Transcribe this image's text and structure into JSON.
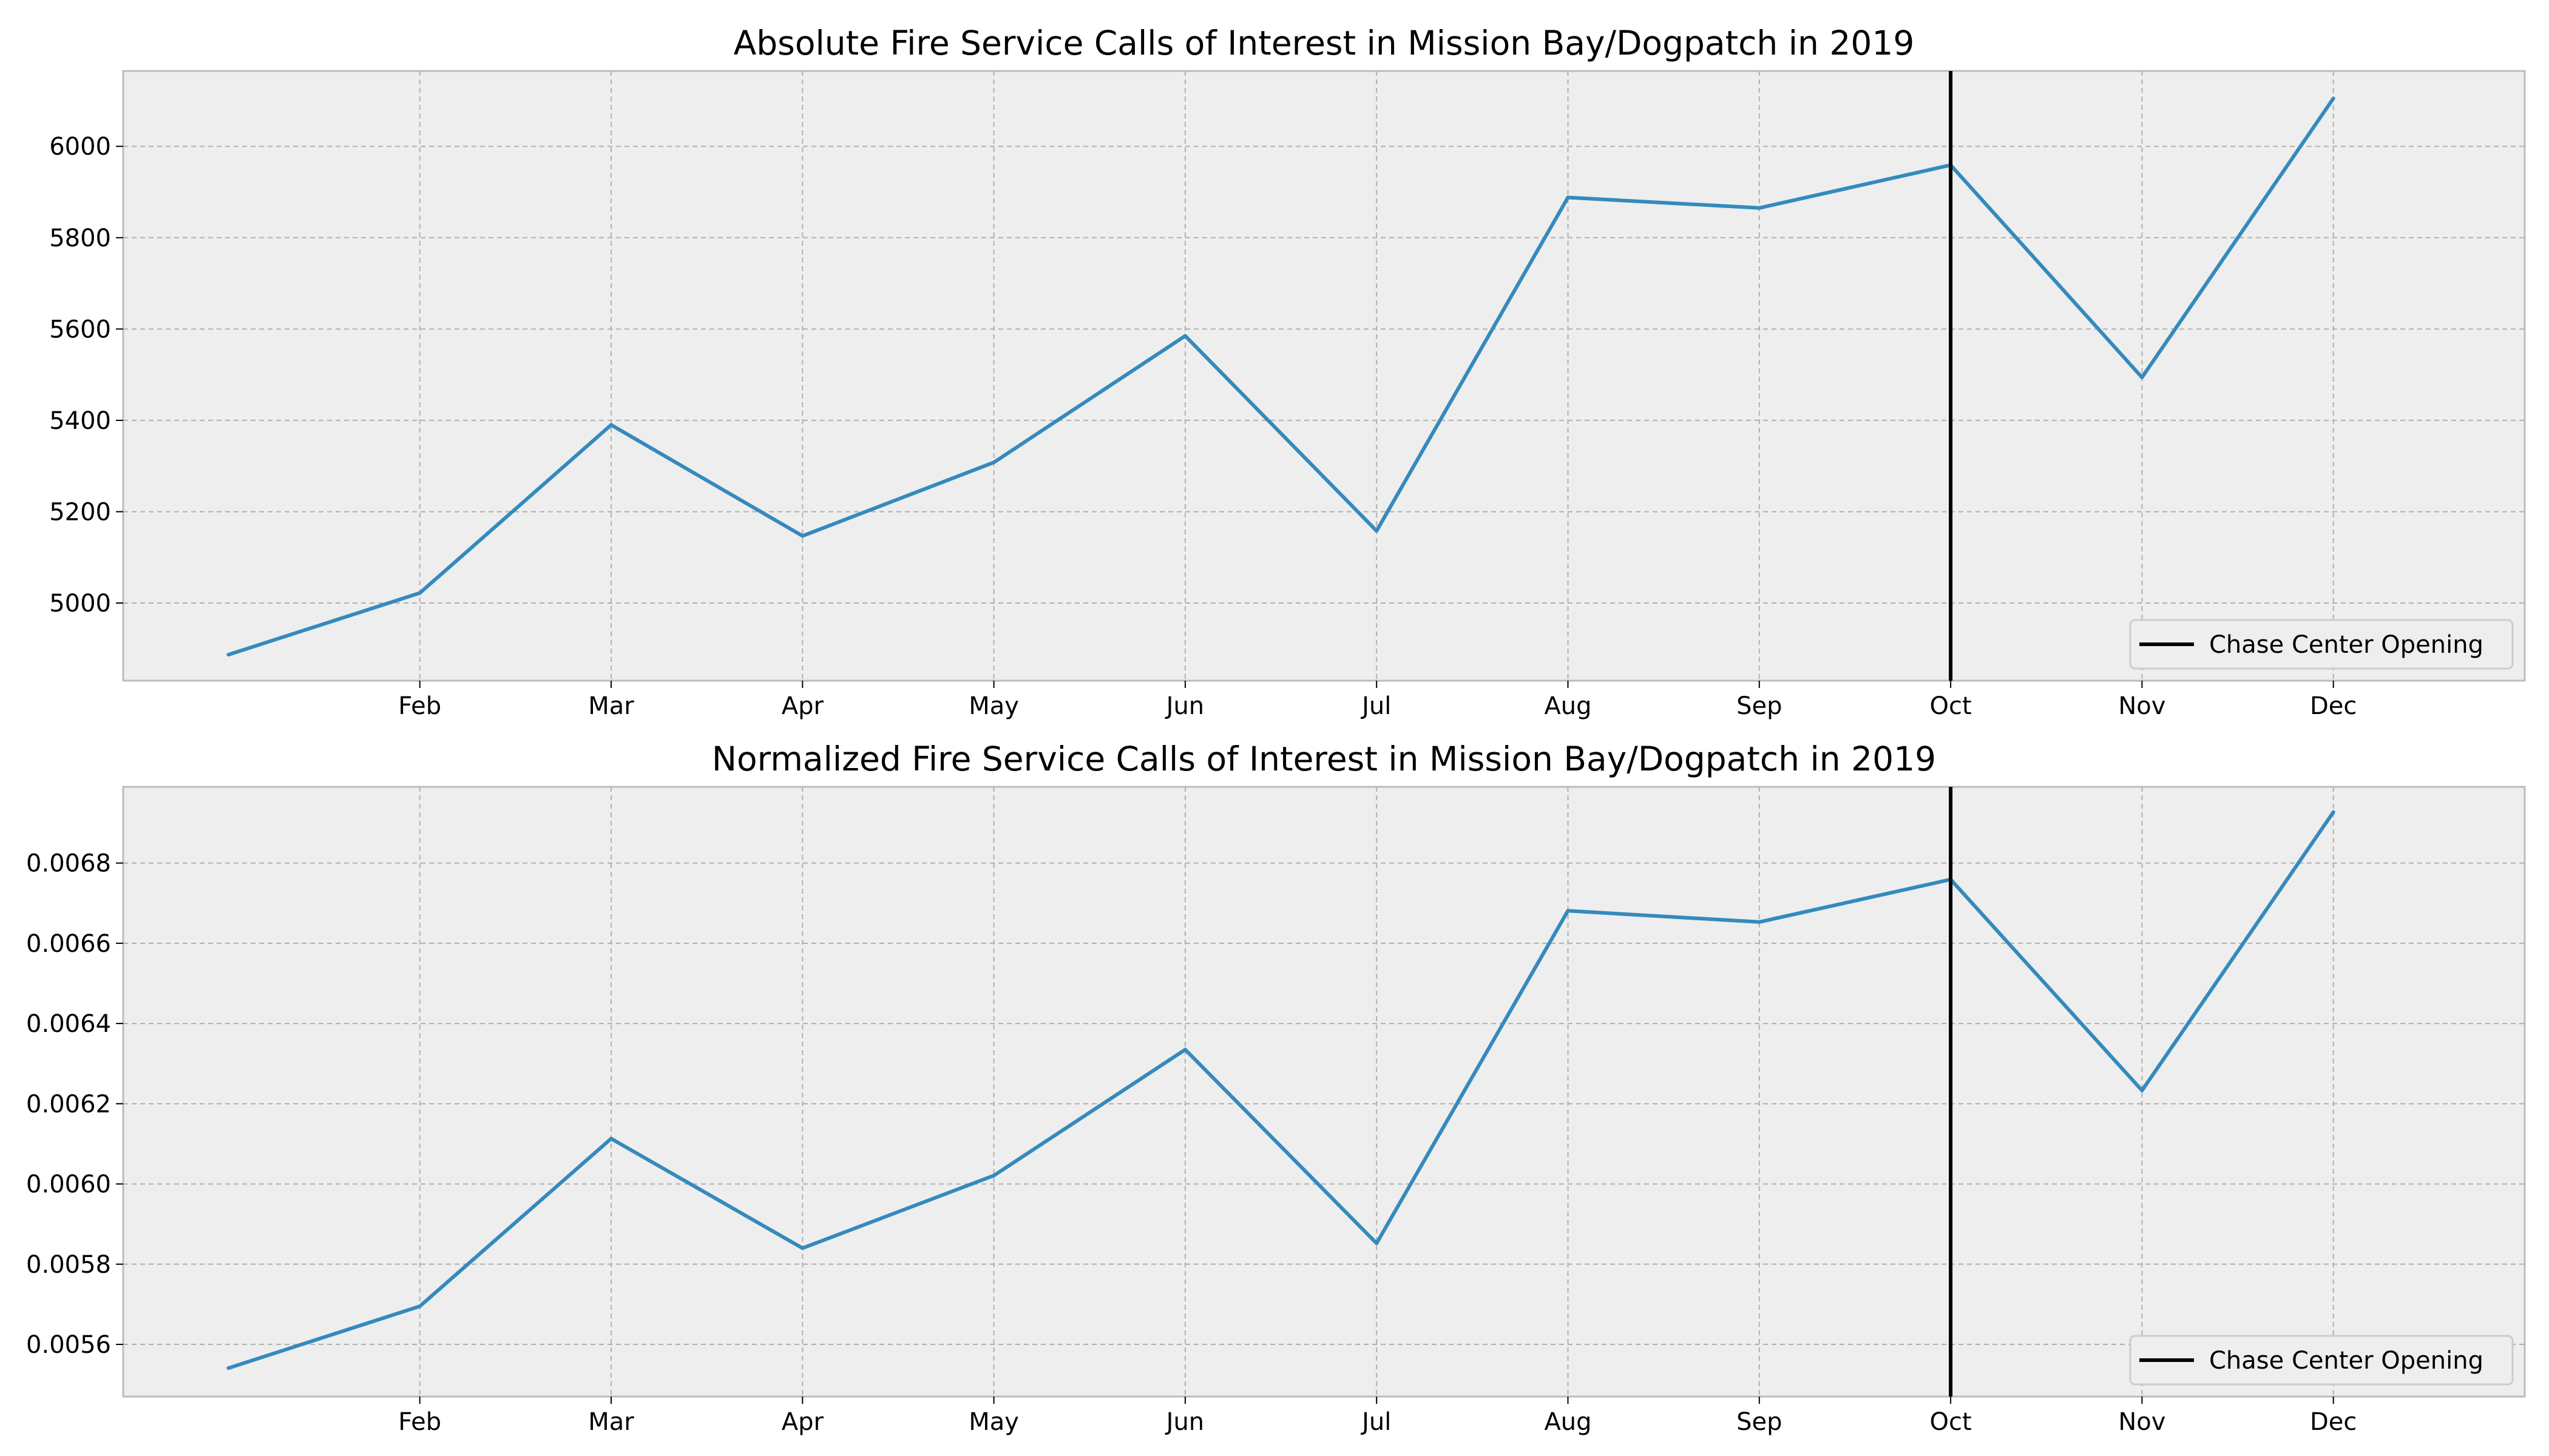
{
  "chart_data": [
    {
      "type": "line",
      "title": "Absolute Fire Service Calls of Interest in Mission Bay/Dogpatch in 2019",
      "xlabel": "",
      "ylabel": "",
      "x_ticks": [
        {
          "x": 2,
          "label": "Feb"
        },
        {
          "x": 3,
          "label": "Mar"
        },
        {
          "x": 4,
          "label": "Apr"
        },
        {
          "x": 5,
          "label": "May"
        },
        {
          "x": 6,
          "label": "Jun"
        },
        {
          "x": 7,
          "label": "Jul"
        },
        {
          "x": 8,
          "label": "Aug"
        },
        {
          "x": 9,
          "label": "Sep"
        },
        {
          "x": 10,
          "label": "Oct"
        },
        {
          "x": 11,
          "label": "Nov"
        },
        {
          "x": 12,
          "label": "Dec"
        }
      ],
      "xlim": [
        0.45,
        13.0
      ],
      "ylim": [
        4830,
        6165
      ],
      "y_ticks": [
        5000,
        5200,
        5400,
        5600,
        5800,
        6000
      ],
      "y_tick_labels": [
        "5000",
        "5200",
        "5400",
        "5600",
        "5800",
        "6000"
      ],
      "grid": true,
      "series": [
        {
          "name": "",
          "color": "#348abd",
          "x": [
            1,
            2,
            3,
            4,
            5,
            6,
            7,
            8,
            9,
            10,
            11,
            12
          ],
          "y": [
            4887,
            5022,
            5390,
            5147,
            5308,
            5585,
            5158,
            5888,
            5865,
            5959,
            5494,
            6105
          ]
        }
      ],
      "vertical_line": {
        "x": 10,
        "label": "Chase Center Opening",
        "color": "#000000"
      },
      "legend_position": "lower-right"
    },
    {
      "type": "line",
      "title": "Normalized Fire Service Calls of Interest in Mission Bay/Dogpatch in 2019",
      "xlabel": "",
      "ylabel": "",
      "x_ticks": [
        {
          "x": 2,
          "label": "Feb"
        },
        {
          "x": 3,
          "label": "Mar"
        },
        {
          "x": 4,
          "label": "Apr"
        },
        {
          "x": 5,
          "label": "May"
        },
        {
          "x": 6,
          "label": "Jun"
        },
        {
          "x": 7,
          "label": "Jul"
        },
        {
          "x": 8,
          "label": "Aug"
        },
        {
          "x": 9,
          "label": "Sep"
        },
        {
          "x": 10,
          "label": "Oct"
        },
        {
          "x": 11,
          "label": "Nov"
        },
        {
          "x": 12,
          "label": "Dec"
        }
      ],
      "xlim": [
        0.45,
        13.0
      ],
      "ylim": [
        0.00547,
        0.00699
      ],
      "y_ticks": [
        0.0056,
        0.0058,
        0.006,
        0.0062,
        0.0064,
        0.0066,
        0.0068
      ],
      "y_tick_labels": [
        "0.0056",
        "0.0058",
        "0.0060",
        "0.0062",
        "0.0064",
        "0.0066",
        "0.0068"
      ],
      "grid": true,
      "series": [
        {
          "name": "",
          "color": "#348abd",
          "x": [
            1,
            2,
            3,
            4,
            5,
            6,
            7,
            8,
            9,
            10,
            11,
            12
          ],
          "y": [
            0.005541,
            0.005695,
            0.006113,
            0.00584,
            0.006021,
            0.006335,
            0.005852,
            0.006681,
            0.006653,
            0.006759,
            0.006233,
            0.006927
          ]
        }
      ],
      "vertical_line": {
        "x": 10,
        "label": "Chase Center Opening",
        "color": "#000000"
      },
      "legend_position": "lower-right"
    }
  ]
}
